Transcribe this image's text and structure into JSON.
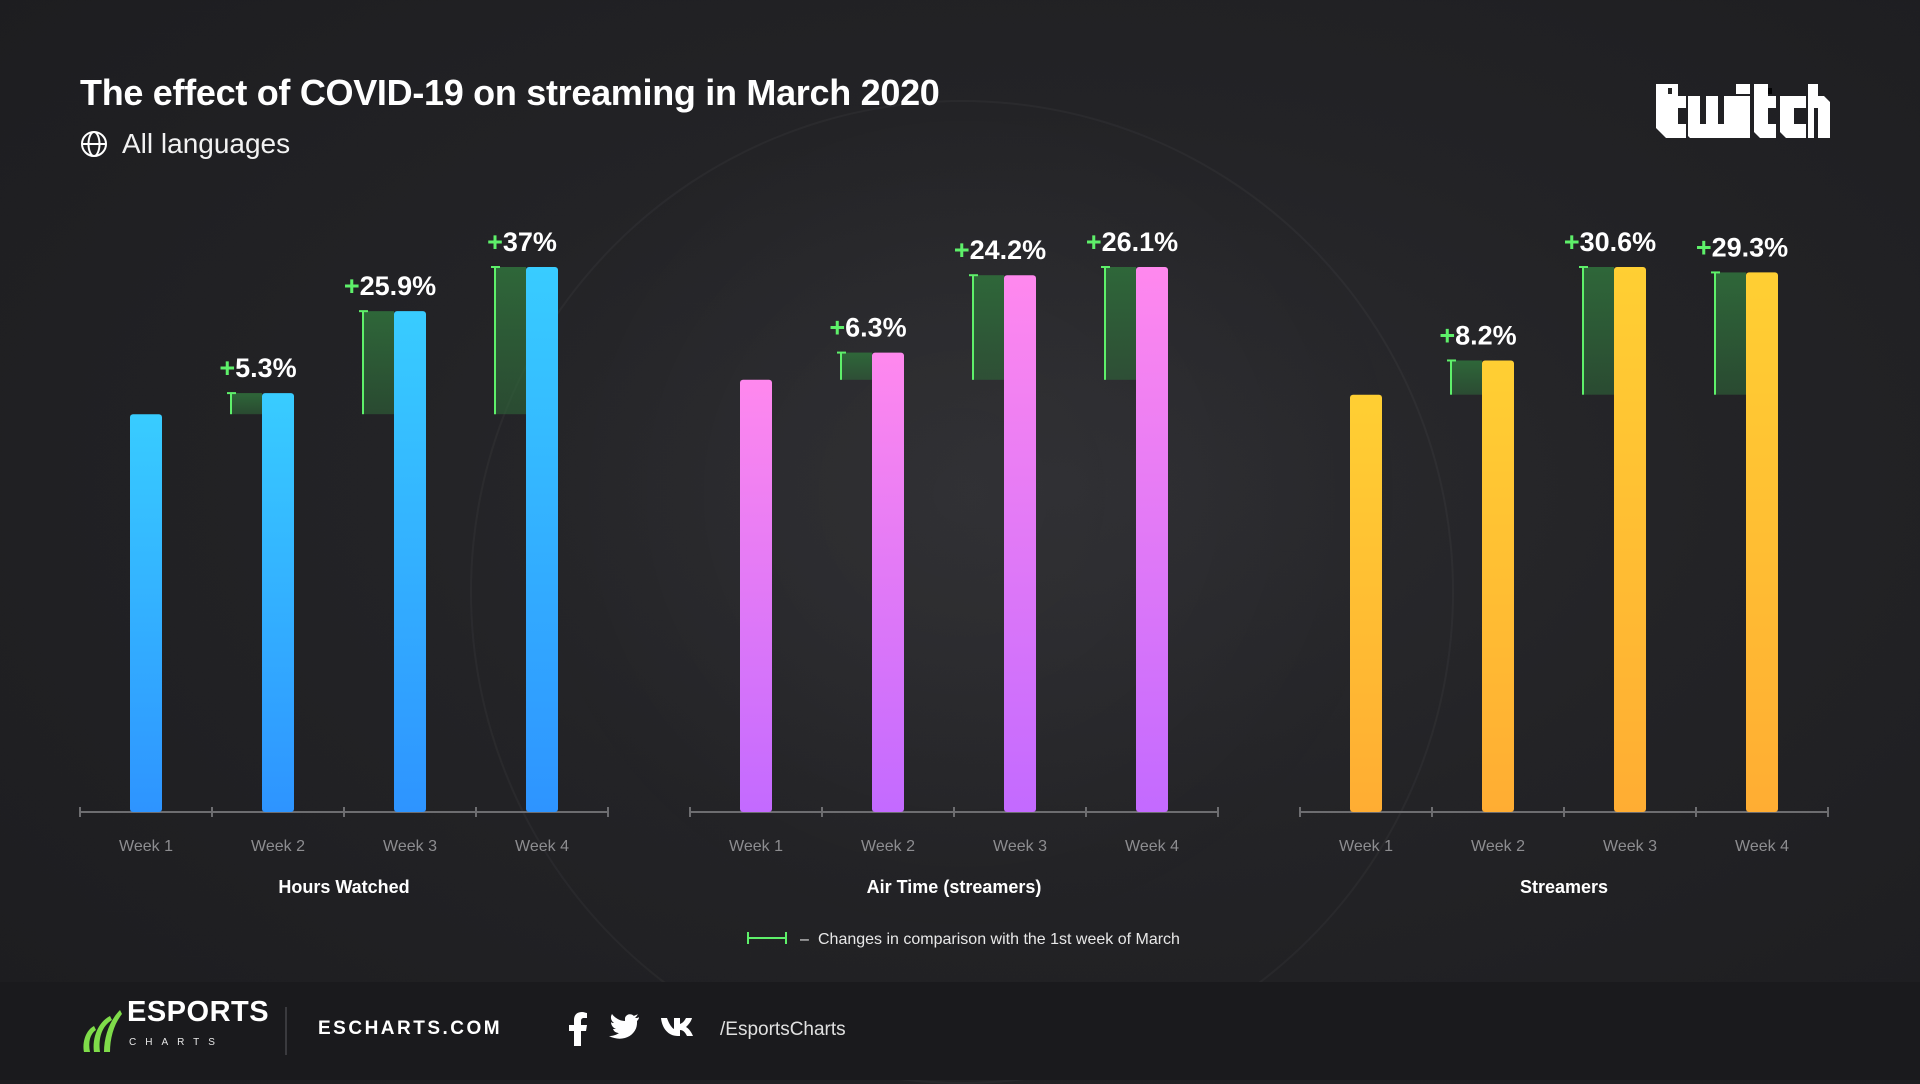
{
  "header": {
    "title": "The effect of COVID-19 on streaming in March 2020",
    "subtitle": "All languages",
    "subtitle_icon": "globe-icon",
    "brand": "twitch"
  },
  "chart_data": [
    {
      "type": "bar",
      "title": "Hours Watched",
      "categories": [
        "Week 1",
        "Week 2",
        "Week 3",
        "Week 4"
      ],
      "values": [
        100,
        105.3,
        125.9,
        137
      ],
      "change_labels": [
        "",
        "+5.3%",
        "+25.9%",
        "+37%"
      ],
      "color_top": "#38ccff",
      "color_bottom": "#2e94ff",
      "ylim": [
        0,
        137
      ]
    },
    {
      "type": "bar",
      "title": "Air Time (streamers)",
      "categories": [
        "Week 1",
        "Week 2",
        "Week 3",
        "Week 4"
      ],
      "values": [
        100,
        106.3,
        124.2,
        126.1
      ],
      "change_labels": [
        "",
        "+6.3%",
        "+24.2%",
        "+26.1%"
      ],
      "color_top": "#ff88ee",
      "color_bottom": "#c36aff",
      "ylim": [
        0,
        126.1
      ]
    },
    {
      "type": "bar",
      "title": "Streamers",
      "categories": [
        "Week 1",
        "Week 2",
        "Week 3",
        "Week 4"
      ],
      "values": [
        100,
        108.2,
        130.6,
        129.3
      ],
      "change_labels": [
        "",
        "+8.2%",
        "+30.6%",
        "+29.3%"
      ],
      "color_top": "#ffcf33",
      "color_bottom": "#ffad33",
      "ylim": [
        0,
        130.6
      ]
    }
  ],
  "legend": {
    "text": "Changes in comparison with the 1st week of March",
    "separator": "–",
    "marker_color": "#5ef06a"
  },
  "colors": {
    "plus_sign": "#5ef06a",
    "change_fill": "#2f6a3a",
    "axis": "#6d6d70",
    "tick_label": "#8d8d90"
  },
  "footer": {
    "brand_line1": "ESPORTS",
    "brand_line2": "CHARTS",
    "site": "ESCHARTS.COM",
    "social_icons": [
      "facebook-icon",
      "twitter-icon",
      "vk-icon"
    ],
    "handle": "/EsportsCharts"
  }
}
